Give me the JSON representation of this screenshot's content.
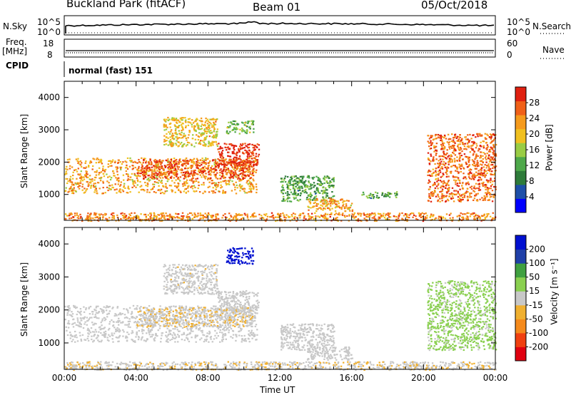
{
  "header": {
    "station": "Buckland Park (fitACF)",
    "beam": "Beam 01",
    "date": "05/Oct/2018"
  },
  "top_panels": {
    "nsky_label": "N.Sky",
    "nsearch_label": "N.Search",
    "freq_label_line1": "Freq.",
    "freq_label_line2": "[MHz]",
    "nave_label": "Nave",
    "cpid_label": "CPID",
    "cpid_value": "normal (fast) 151",
    "nsky_ticks": [
      "10^5",
      "10^0"
    ],
    "nsearch_ticks": [
      "10^5",
      "10^0"
    ],
    "freq_ticks": [
      "18",
      "8"
    ],
    "nave_ticks": [
      "60",
      "0"
    ]
  },
  "chart_data": [
    {
      "type": "heatmap",
      "panel": "power",
      "ylabel": "Slant Range [km]",
      "xlabel": "",
      "ylim": [
        200,
        4500
      ],
      "xlim_hours": [
        0,
        24
      ],
      "yticks": [
        1000,
        2000,
        3000,
        4000
      ],
      "colorbar": {
        "label": "Power [dB]",
        "ticks": [
          "28",
          "24",
          "20",
          "16",
          "12",
          "8",
          "4"
        ],
        "range": [
          0,
          32
        ],
        "colors": [
          "#0000ff",
          "#1e4fa8",
          "#2e7b3a",
          "#4ea84a",
          "#99cc44",
          "#f0c020",
          "#f59a1c",
          "#f06018",
          "#e02010"
        ]
      },
      "regions": [
        {
          "t0": 0.0,
          "t1": 10.7,
          "r0": 1050,
          "r1": 2150,
          "value": 22
        },
        {
          "t0": 4.0,
          "t1": 10.5,
          "r0": 1500,
          "r1": 2100,
          "value": 28
        },
        {
          "t0": 8.5,
          "t1": 10.8,
          "r0": 1900,
          "r1": 2600,
          "value": 30
        },
        {
          "t0": 9.0,
          "t1": 10.5,
          "r0": 2900,
          "r1": 3300,
          "value": 14
        },
        {
          "t0": 5.5,
          "t1": 8.5,
          "r0": 2500,
          "r1": 3400,
          "value": 20
        },
        {
          "t0": 12.0,
          "t1": 15.0,
          "r0": 800,
          "r1": 1600,
          "value": 12
        },
        {
          "t0": 13.5,
          "t1": 16.0,
          "r0": 500,
          "r1": 900,
          "value": 22
        },
        {
          "t0": 16.5,
          "t1": 18.5,
          "r0": 900,
          "r1": 1100,
          "value": 12
        },
        {
          "t0": 20.2,
          "t1": 24.0,
          "r0": 800,
          "r1": 2900,
          "value": 26
        },
        {
          "t0": 0.0,
          "t1": 24.0,
          "r0": 200,
          "r1": 450,
          "value": 24
        }
      ]
    },
    {
      "type": "heatmap",
      "panel": "velocity",
      "ylabel": "Slant Range [km]",
      "xlabel": "Time UT",
      "ylim": [
        200,
        4500
      ],
      "xlim_hours": [
        0,
        24
      ],
      "yticks": [
        1000,
        2000,
        3000,
        4000
      ],
      "xticks": [
        "00:00",
        "04:00",
        "08:00",
        "12:00",
        "16:00",
        "20:00",
        "00:00"
      ],
      "colorbar": {
        "label": "Velocity [m s⁻¹]",
        "ticks": [
          "200",
          "100",
          "50",
          "15",
          "-15",
          "-50",
          "-100",
          "-200"
        ],
        "range": [
          -250,
          250
        ],
        "colors": [
          "#e00010",
          "#f04010",
          "#f58a1c",
          "#f0b030",
          "#c8c8c8",
          "#8ad050",
          "#40a040",
          "#2040a8",
          "#0010d0"
        ]
      },
      "regions": [
        {
          "t0": 0.0,
          "t1": 10.7,
          "r0": 1050,
          "r1": 2150,
          "value": 0
        },
        {
          "t0": 4.0,
          "t1": 10.5,
          "r0": 1500,
          "r1": 2100,
          "value": -20
        },
        {
          "t0": 8.5,
          "t1": 10.8,
          "r0": 1900,
          "r1": 2600,
          "value": 0
        },
        {
          "t0": 9.0,
          "t1": 10.5,
          "r0": 3400,
          "r1": 3900,
          "value": 220
        },
        {
          "t0": 5.5,
          "t1": 8.5,
          "r0": 2500,
          "r1": 3400,
          "value": -10
        },
        {
          "t0": 12.0,
          "t1": 15.0,
          "r0": 800,
          "r1": 1600,
          "value": 0
        },
        {
          "t0": 13.5,
          "t1": 16.0,
          "r0": 500,
          "r1": 900,
          "value": 0
        },
        {
          "t0": 20.2,
          "t1": 24.0,
          "r0": 800,
          "r1": 2900,
          "value": 40
        },
        {
          "t0": 0.0,
          "t1": 24.0,
          "r0": 200,
          "r1": 450,
          "value": -20
        }
      ]
    }
  ]
}
